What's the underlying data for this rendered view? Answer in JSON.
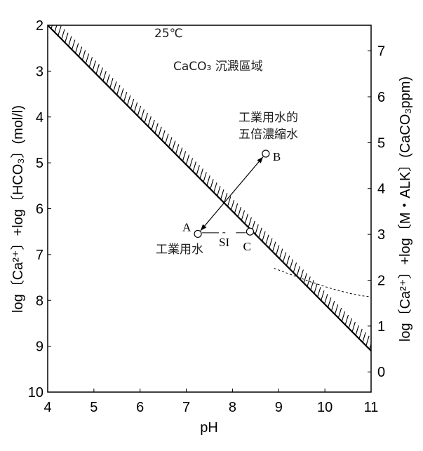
{
  "chart_data": {
    "type": "line",
    "title": "",
    "xlabel": "pH",
    "ylabel_left": "log〔Ca²⁺〕+log〔HCO₃〕(mol/l)",
    "ylabel_right": "log〔Ca²⁺〕+log〔M・ALK〕(CaCO₃ppm)",
    "xlim": [
      4,
      11
    ],
    "ylim_left": [
      10,
      2
    ],
    "ylim_right": [
      -0.44,
      7.56
    ],
    "x_ticks": [
      "4",
      "5",
      "6",
      "7",
      "8",
      "9",
      "10",
      "11"
    ],
    "y_ticks_left": [
      "2",
      "3",
      "4",
      "5",
      "6",
      "7",
      "8",
      "9",
      "10"
    ],
    "y_ticks_right": [
      "0",
      "1",
      "2",
      "3",
      "4",
      "5",
      "6",
      "7"
    ],
    "temperature_label": "25℃",
    "region_label": "CaCO₃ 沉澱區域",
    "saturation_line": {
      "x": [
        4,
        11
      ],
      "y": [
        2.0,
        9.1
      ]
    },
    "dashed_curve": {
      "x": [
        8.9,
        9.3,
        9.7,
        10.1,
        10.5,
        10.8,
        11.0
      ],
      "y": [
        7.3,
        7.45,
        7.6,
        7.73,
        7.84,
        7.9,
        7.92
      ]
    },
    "points": [
      {
        "label": "A",
        "x": 7.25,
        "y": 6.55
      },
      {
        "label": "B",
        "x": 8.72,
        "y": 4.8
      },
      {
        "label": "C",
        "x": 8.38,
        "y": 6.5
      }
    ],
    "annotations": {
      "industrial_water": "工業用水",
      "concentrated_line1": "工業用水的",
      "concentrated_line2": "五倍濃縮水",
      "si": "SI"
    }
  },
  "colors": {
    "line": "#000000",
    "background": "#ffffff"
  }
}
